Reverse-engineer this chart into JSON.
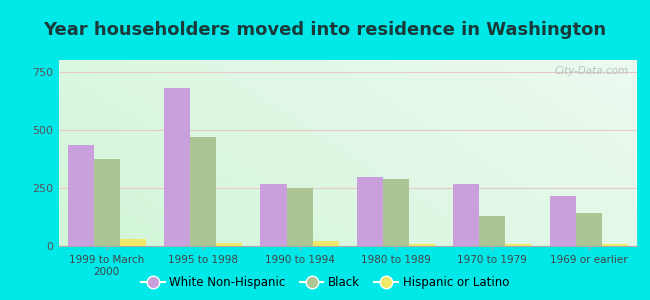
{
  "title": "Year householders moved into residence in Washington",
  "categories": [
    "1999 to March\n2000",
    "1995 to 1998",
    "1990 to 1994",
    "1980 to 1989",
    "1970 to 1979",
    "1969 or earlier"
  ],
  "white": [
    435,
    680,
    268,
    295,
    268,
    215
  ],
  "black": [
    375,
    468,
    248,
    288,
    128,
    140
  ],
  "hispanic": [
    28,
    14,
    20,
    10,
    10,
    10
  ],
  "white_color": "#c9a0dc",
  "black_color": "#adc495",
  "hispanic_color": "#f0e868",
  "background_outer": "#00e8e8",
  "background_inner_left": "#c8ecd0",
  "background_inner_right": "#e8f5ee",
  "ylim": [
    0,
    800
  ],
  "yticks": [
    0,
    250,
    500,
    750
  ],
  "watermark": "City-Data.com",
  "legend_labels": [
    "White Non-Hispanic",
    "Black",
    "Hispanic or Latino"
  ],
  "title_fontsize": 13,
  "bar_width": 0.27
}
